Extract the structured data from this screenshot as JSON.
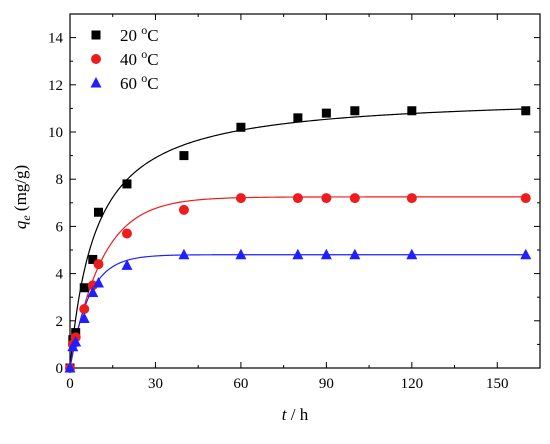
{
  "chart_data": {
    "type": "scatter",
    "title": "",
    "xlabel": {
      "italic": "t",
      "rest": " / h"
    },
    "ylabel": {
      "base": "q",
      "sub": "e",
      "rest": " (mg/g)"
    },
    "xlim": [
      0,
      165
    ],
    "ylim": [
      0,
      15
    ],
    "x_ticks": [
      0,
      30,
      60,
      90,
      120,
      150
    ],
    "y_ticks": [
      0,
      2,
      4,
      6,
      8,
      10,
      12,
      14
    ],
    "grid": false,
    "legend_position": "top-left",
    "series": [
      {
        "name": "20 °C",
        "label_main": "20 ",
        "label_sup": "o",
        "label_unit": "C",
        "marker": "square",
        "color": "#000000",
        "x": [
          0,
          1,
          2,
          5,
          8,
          10,
          20,
          40,
          60,
          80,
          90,
          100,
          120,
          160
        ],
        "y": [
          0,
          1.2,
          1.5,
          3.4,
          4.6,
          6.6,
          7.8,
          9.0,
          10.2,
          10.6,
          10.8,
          10.9,
          10.9,
          10.9
        ],
        "fit": {
          "qe": 11.6,
          "k": 0.0095,
          "model": "pseudo-second-order"
        }
      },
      {
        "name": "40 °C",
        "label_main": "40 ",
        "label_sup": "o",
        "label_unit": "C",
        "marker": "circle",
        "color": "#ee1c1c",
        "x": [
          0,
          1,
          2,
          5,
          8,
          10,
          20,
          40,
          60,
          80,
          90,
          100,
          120,
          160
        ],
        "y": [
          0,
          1.0,
          1.3,
          2.5,
          3.5,
          4.4,
          5.7,
          6.7,
          7.2,
          7.2,
          7.2,
          7.2,
          7.2,
          7.2
        ],
        "fit": {
          "qe": 7.25,
          "k": 0.09,
          "model": "exponential"
        }
      },
      {
        "name": "60 °C",
        "label_main": "60 ",
        "label_sup": "o",
        "label_unit": "C",
        "marker": "triangle",
        "color": "#1f1fff",
        "x": [
          0,
          1,
          2,
          5,
          8,
          10,
          20,
          40,
          60,
          80,
          90,
          100,
          120,
          160
        ],
        "y": [
          0,
          0.9,
          1.1,
          2.1,
          3.2,
          3.6,
          4.35,
          4.8,
          4.8,
          4.8,
          4.8,
          4.8,
          4.8,
          4.8
        ],
        "fit": {
          "qe": 4.8,
          "k": 0.15,
          "model": "exponential"
        }
      }
    ]
  }
}
